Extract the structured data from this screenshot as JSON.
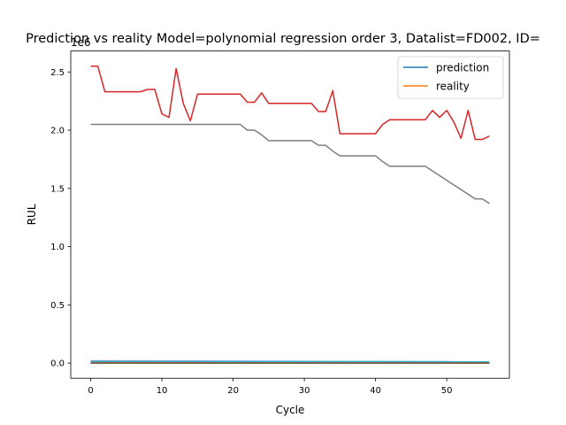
{
  "chart_data": {
    "type": "line",
    "title": "Prediction vs reality Model=polynomial regression order 3, Datalist=FD002, ID=",
    "xlabel": "Cycle",
    "ylabel": "RUL",
    "offset_text": "1e6",
    "xlim": [
      -2.8,
      58.8
    ],
    "ylim": [
      -0.13,
      2.68
    ],
    "y_scale_note": "values in units of 1e6",
    "xticks": [
      0,
      10,
      20,
      30,
      40,
      50
    ],
    "yticks": [
      0.0,
      0.5,
      1.0,
      1.5,
      2.0,
      2.5
    ],
    "xtick_labels": [
      "0",
      "10",
      "20",
      "30",
      "40",
      "50"
    ],
    "ytick_labels": [
      "0.0",
      "0.5",
      "1.0",
      "1.5",
      "2.0",
      "2.5"
    ],
    "grid": false,
    "legend_position": "upper right",
    "legend": [
      "prediction",
      "reality"
    ],
    "series": [
      {
        "name": "prediction",
        "color": "#1f77b4",
        "x": [
          0,
          56
        ],
        "y": [
          0.0,
          0.0
        ]
      },
      {
        "name": "reality",
        "color": "#ff7f0e",
        "x": [
          0,
          56
        ],
        "y": [
          0.0,
          0.0
        ]
      },
      {
        "color": "#d62728",
        "x": [
          0,
          1,
          2,
          3,
          4,
          5,
          6,
          7,
          8,
          9,
          10,
          11,
          12,
          13,
          14,
          15,
          16,
          17,
          18,
          19,
          20,
          21,
          22,
          23,
          24,
          25,
          26,
          27,
          28,
          29,
          30,
          31,
          32,
          33,
          34,
          35,
          36,
          37,
          38,
          39,
          40,
          41,
          42,
          43,
          44,
          45,
          46,
          47,
          48,
          49,
          50,
          51,
          52,
          53,
          54,
          55,
          56
        ],
        "y": [
          2.55,
          2.55,
          2.33,
          2.33,
          2.33,
          2.33,
          2.33,
          2.33,
          2.35,
          2.35,
          2.14,
          2.11,
          2.53,
          2.23,
          2.08,
          2.31,
          2.31,
          2.31,
          2.31,
          2.31,
          2.31,
          2.31,
          2.24,
          2.24,
          2.32,
          2.23,
          2.23,
          2.23,
          2.23,
          2.23,
          2.23,
          2.23,
          2.16,
          2.16,
          2.34,
          1.97,
          1.97,
          1.97,
          1.97,
          1.97,
          1.97,
          2.05,
          2.09,
          2.09,
          2.09,
          2.09,
          2.09,
          2.09,
          2.17,
          2.11,
          2.17,
          2.07,
          1.93,
          2.17,
          1.92,
          1.92,
          1.95
        ]
      },
      {
        "color": "#7f7f7f",
        "x": [
          0,
          1,
          2,
          3,
          4,
          5,
          6,
          7,
          8,
          9,
          10,
          11,
          12,
          13,
          14,
          15,
          16,
          17,
          18,
          19,
          20,
          21,
          22,
          23,
          24,
          25,
          26,
          27,
          28,
          29,
          30,
          31,
          32,
          33,
          34,
          35,
          36,
          37,
          38,
          39,
          40,
          41,
          42,
          43,
          44,
          45,
          46,
          47,
          48,
          49,
          50,
          51,
          52,
          53,
          54,
          55,
          56
        ],
        "y": [
          2.05,
          2.05,
          2.05,
          2.05,
          2.05,
          2.05,
          2.05,
          2.05,
          2.05,
          2.05,
          2.05,
          2.05,
          2.05,
          2.05,
          2.05,
          2.05,
          2.05,
          2.05,
          2.05,
          2.05,
          2.05,
          2.05,
          2.0,
          2.0,
          1.96,
          1.91,
          1.91,
          1.91,
          1.91,
          1.91,
          1.91,
          1.91,
          1.87,
          1.87,
          1.82,
          1.78,
          1.78,
          1.78,
          1.78,
          1.78,
          1.78,
          1.73,
          1.69,
          1.69,
          1.69,
          1.69,
          1.69,
          1.69,
          1.65,
          1.61,
          1.57,
          1.53,
          1.49,
          1.45,
          1.41,
          1.41,
          1.37
        ]
      },
      {
        "color": "#e377c2",
        "x": [
          0,
          56
        ],
        "y": [
          0.02,
          0.01
        ]
      },
      {
        "color": "#bcbd22",
        "x": [
          0,
          56
        ],
        "y": [
          0.012,
          0.008
        ]
      },
      {
        "color": "#17becf",
        "x": [
          0,
          56
        ],
        "y": [
          0.015,
          0.012
        ]
      },
      {
        "color": "#2ca02c",
        "x": [
          0,
          56
        ],
        "y": [
          0.0,
          0.0
        ]
      },
      {
        "color": "#9467bd",
        "x": [
          0,
          56
        ],
        "y": [
          0.004,
          0.004
        ]
      },
      {
        "color": "#8c564b",
        "x": [
          0,
          56
        ],
        "y": [
          0.002,
          0.002
        ]
      }
    ]
  }
}
